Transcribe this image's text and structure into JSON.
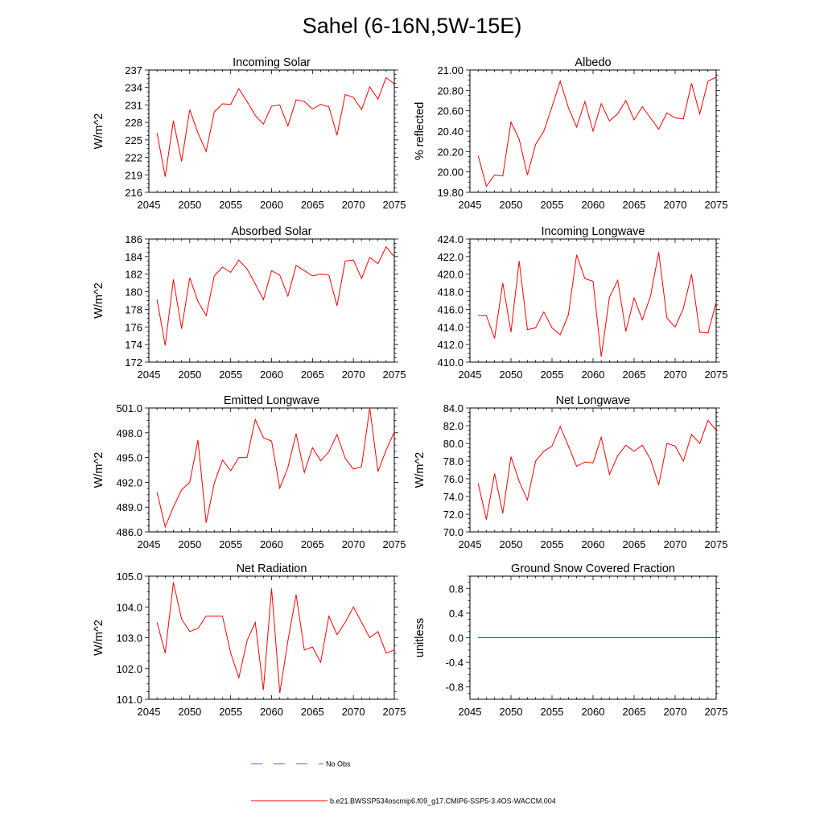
{
  "title": "Sahel (6-16N,5W-15E)",
  "line_color": "#ff0000",
  "obs_color": "#5a5aff",
  "legend": {
    "obs_label": "No Obs",
    "model_label": "b.e21.BWSSP534oscmip6.f09_g17.CMIP6-SSP5-3.4OS-WACCM.004"
  },
  "chart_data": [
    {
      "type": "line",
      "title": "Incoming Solar",
      "ylabel": "W/m^2",
      "xlim": [
        2045,
        2075
      ],
      "ylim": [
        216,
        237
      ],
      "xticks": [
        2045,
        2050,
        2055,
        2060,
        2065,
        2070,
        2075
      ],
      "yticks": [
        216,
        219,
        222,
        225,
        228,
        231,
        234,
        237
      ],
      "ytick_labels": [
        "216",
        "219",
        "222",
        "225",
        "228",
        "231",
        "234",
        "237"
      ],
      "x": [
        2046,
        2047,
        2048,
        2049,
        2050,
        2051,
        2052,
        2053,
        2054,
        2055,
        2056,
        2057,
        2058,
        2059,
        2060,
        2061,
        2062,
        2063,
        2064,
        2065,
        2066,
        2067,
        2068,
        2069,
        2070,
        2071,
        2072,
        2073,
        2074,
        2075
      ],
      "values": [
        226.2,
        218.7,
        228.3,
        221.3,
        230.2,
        226.2,
        223.0,
        229.8,
        231.2,
        231.1,
        233.8,
        231.6,
        229.2,
        227.7,
        230.8,
        231.0,
        227.4,
        231.9,
        231.6,
        230.3,
        231.1,
        230.7,
        225.8,
        232.8,
        232.3,
        230.2,
        234.1,
        232.0,
        235.7,
        234.6
      ]
    },
    {
      "type": "line",
      "title": "Albedo",
      "ylabel": "% reflected",
      "xlim": [
        2045,
        2075
      ],
      "ylim": [
        19.8,
        21.0
      ],
      "xticks": [
        2045,
        2050,
        2055,
        2060,
        2065,
        2070,
        2075
      ],
      "yticks": [
        19.8,
        20.0,
        20.2,
        20.4,
        20.6,
        20.8,
        21.0
      ],
      "ytick_labels": [
        "19.80",
        "20.00",
        "20.20",
        "20.40",
        "20.60",
        "20.80",
        "21.00"
      ],
      "x": [
        2046,
        2047,
        2048,
        2049,
        2050,
        2051,
        2052,
        2053,
        2054,
        2055,
        2056,
        2057,
        2058,
        2059,
        2060,
        2061,
        2062,
        2063,
        2064,
        2065,
        2066,
        2067,
        2068,
        2069,
        2070,
        2071,
        2072,
        2073,
        2074,
        2075
      ],
      "values": [
        20.16,
        19.86,
        19.97,
        19.96,
        20.49,
        20.32,
        19.97,
        20.27,
        20.4,
        20.64,
        20.89,
        20.63,
        20.44,
        20.69,
        20.4,
        20.67,
        20.5,
        20.57,
        20.7,
        20.51,
        20.64,
        20.53,
        20.42,
        20.58,
        20.53,
        20.52,
        20.87,
        20.57,
        20.89,
        20.93
      ]
    },
    {
      "type": "line",
      "title": "Absorbed Solar",
      "ylabel": "W/m^2",
      "xlim": [
        2045,
        2075
      ],
      "ylim": [
        172,
        186
      ],
      "xticks": [
        2045,
        2050,
        2055,
        2060,
        2065,
        2070,
        2075
      ],
      "yticks": [
        172,
        174,
        176,
        178,
        180,
        182,
        184,
        186
      ],
      "ytick_labels": [
        "172",
        "174",
        "176",
        "178",
        "180",
        "182",
        "184",
        "186"
      ],
      "x": [
        2046,
        2047,
        2048,
        2049,
        2050,
        2051,
        2052,
        2053,
        2054,
        2055,
        2056,
        2057,
        2058,
        2059,
        2060,
        2061,
        2062,
        2063,
        2064,
        2065,
        2066,
        2067,
        2068,
        2069,
        2070,
        2071,
        2072,
        2073,
        2074,
        2075
      ],
      "values": [
        179.1,
        173.9,
        181.4,
        175.8,
        181.6,
        178.9,
        177.3,
        181.8,
        182.8,
        182.2,
        183.6,
        182.6,
        180.9,
        179.1,
        182.4,
        181.9,
        179.5,
        183.0,
        182.4,
        181.8,
        182.0,
        181.9,
        178.4,
        183.5,
        183.6,
        181.5,
        183.9,
        183.2,
        185.1,
        184.0
      ]
    },
    {
      "type": "line",
      "title": "Incoming Longwave",
      "ylabel": "",
      "xlim": [
        2045,
        2075
      ],
      "ylim": [
        410,
        424
      ],
      "xticks": [
        2045,
        2050,
        2055,
        2060,
        2065,
        2070,
        2075
      ],
      "yticks": [
        410,
        412,
        414,
        416,
        418,
        420,
        422,
        424
      ],
      "ytick_labels": [
        "410.0",
        "412.0",
        "414.0",
        "416.0",
        "418.0",
        "420.0",
        "422.0",
        "424.0"
      ],
      "x": [
        2046,
        2047,
        2048,
        2049,
        2050,
        2051,
        2052,
        2053,
        2054,
        2055,
        2056,
        2057,
        2058,
        2059,
        2060,
        2061,
        2062,
        2063,
        2064,
        2065,
        2066,
        2067,
        2068,
        2069,
        2070,
        2071,
        2072,
        2073,
        2074,
        2075
      ],
      "values": [
        415.3,
        415.3,
        412.7,
        419.0,
        413.4,
        421.5,
        413.7,
        413.9,
        415.7,
        413.9,
        413.1,
        415.4,
        422.2,
        419.5,
        419.2,
        410.6,
        417.4,
        419.3,
        413.5,
        417.3,
        414.8,
        417.5,
        422.5,
        415.0,
        414.0,
        416.1,
        420.0,
        413.4,
        413.3,
        416.8
      ]
    },
    {
      "type": "line",
      "title": "Emitted Longwave",
      "ylabel": "W/m^2",
      "xlim": [
        2045,
        2075
      ],
      "ylim": [
        486,
        501
      ],
      "xticks": [
        2045,
        2050,
        2055,
        2060,
        2065,
        2070,
        2075
      ],
      "yticks": [
        486,
        489,
        492,
        495,
        498,
        501
      ],
      "ytick_labels": [
        "486.0",
        "489.0",
        "492.0",
        "495.0",
        "498.0",
        "501.0"
      ],
      "x": [
        2046,
        2047,
        2048,
        2049,
        2050,
        2051,
        2052,
        2053,
        2054,
        2055,
        2056,
        2057,
        2058,
        2059,
        2060,
        2061,
        2062,
        2063,
        2064,
        2065,
        2066,
        2067,
        2068,
        2069,
        2070,
        2071,
        2072,
        2073,
        2074,
        2075
      ],
      "values": [
        490.8,
        486.6,
        489.0,
        491.1,
        492.0,
        497.1,
        487.1,
        491.9,
        494.7,
        493.4,
        495.0,
        495.0,
        499.6,
        497.4,
        497.0,
        491.3,
        493.8,
        497.9,
        493.2,
        496.2,
        494.6,
        495.7,
        497.8,
        494.9,
        493.6,
        493.9,
        501.0,
        493.3,
        495.9,
        498.1
      ]
    },
    {
      "type": "line",
      "title": "Net Longwave",
      "ylabel": "W/m^2",
      "xlim": [
        2045,
        2075
      ],
      "ylim": [
        70,
        84
      ],
      "xticks": [
        2045,
        2050,
        2055,
        2060,
        2065,
        2070,
        2075
      ],
      "yticks": [
        70,
        72,
        74,
        76,
        78,
        80,
        82,
        84
      ],
      "ytick_labels": [
        "70.0",
        "72.0",
        "74.0",
        "76.0",
        "78.0",
        "80.0",
        "82.0",
        "84.0"
      ],
      "x": [
        2046,
        2047,
        2048,
        2049,
        2050,
        2051,
        2052,
        2053,
        2054,
        2055,
        2056,
        2057,
        2058,
        2059,
        2060,
        2061,
        2062,
        2063,
        2064,
        2065,
        2066,
        2067,
        2068,
        2069,
        2070,
        2071,
        2072,
        2073,
        2074,
        2075
      ],
      "values": [
        75.5,
        71.4,
        76.6,
        72.1,
        78.5,
        75.7,
        73.6,
        78.0,
        79.1,
        79.7,
        81.9,
        79.7,
        77.4,
        77.9,
        77.8,
        80.7,
        76.5,
        78.6,
        79.8,
        79.1,
        79.8,
        78.2,
        75.3,
        80.0,
        79.7,
        78.0,
        81.0,
        80.0,
        82.6,
        81.5
      ]
    },
    {
      "type": "line",
      "title": "Net Radiation",
      "ylabel": "W/m^2",
      "xlim": [
        2045,
        2075
      ],
      "ylim": [
        101,
        105
      ],
      "xticks": [
        2045,
        2050,
        2055,
        2060,
        2065,
        2070,
        2075
      ],
      "yticks": [
        101,
        102,
        103,
        104,
        105
      ],
      "ytick_labels": [
        "101.0",
        "102.0",
        "103.0",
        "104.0",
        "105.0"
      ],
      "x": [
        2046,
        2047,
        2048,
        2049,
        2050,
        2051,
        2052,
        2053,
        2054,
        2055,
        2056,
        2057,
        2058,
        2059,
        2060,
        2061,
        2062,
        2063,
        2064,
        2065,
        2066,
        2067,
        2068,
        2069,
        2070,
        2071,
        2072,
        2073,
        2074,
        2075
      ],
      "values": [
        103.5,
        102.5,
        104.8,
        103.6,
        103.2,
        103.3,
        103.7,
        103.7,
        103.7,
        102.5,
        101.7,
        102.9,
        103.5,
        101.3,
        104.6,
        101.2,
        102.9,
        104.4,
        102.6,
        102.7,
        102.2,
        103.7,
        103.1,
        103.5,
        104.0,
        103.5,
        103.0,
        103.2,
        102.5,
        102.6
      ]
    },
    {
      "type": "line",
      "title": "Ground Snow Covered Fraction",
      "ylabel": "unitless",
      "xlim": [
        2045,
        2075
      ],
      "ylim": [
        -1.0,
        1.0
      ],
      "xticks": [
        2045,
        2050,
        2055,
        2060,
        2065,
        2070,
        2075
      ],
      "yticks": [
        -0.8,
        -0.4,
        0.0,
        0.4,
        0.8
      ],
      "ytick_labels": [
        "-0.8",
        "-0.4",
        "0.0",
        "0.4",
        "0.8"
      ],
      "x": [
        2046,
        2075
      ],
      "values": [
        0.0,
        0.0
      ]
    }
  ]
}
